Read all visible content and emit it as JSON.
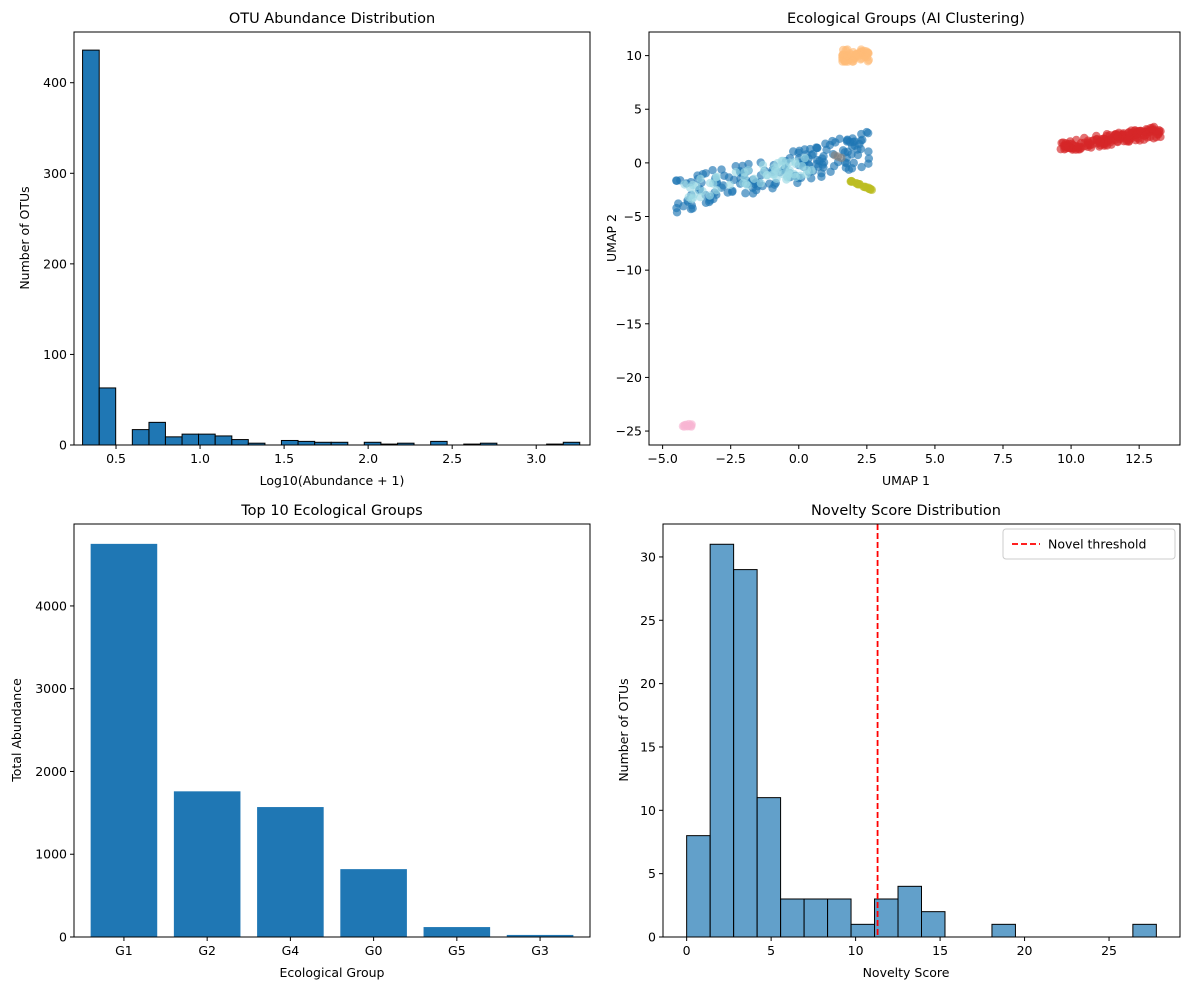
{
  "chart_data": [
    {
      "type": "bar",
      "title": "OTU Abundance Distribution",
      "xlabel": "Log10(Abundance + 1)",
      "ylabel": "Number of OTUs",
      "xlim": [
        0.25,
        3.32
      ],
      "ylim": [
        0,
        456
      ],
      "xticks": [
        0.5,
        1.0,
        1.5,
        2.0,
        2.5,
        3.0
      ],
      "xtick_labels": [
        "0.5",
        "1.0",
        "1.5",
        "2.0",
        "2.5",
        "3.0"
      ],
      "yticks": [
        0,
        100,
        200,
        300,
        400
      ],
      "ytick_labels": [
        "0",
        "100",
        "200",
        "300",
        "400"
      ],
      "bar_color": "#1f77b4",
      "edge_color": "#000000",
      "bin_edges": [
        0.301,
        0.4,
        0.498,
        0.597,
        0.696,
        0.794,
        0.893,
        0.991,
        1.09,
        1.189,
        1.287,
        1.386,
        1.484,
        1.583,
        1.682,
        1.78,
        1.879,
        1.977,
        2.076,
        2.175,
        2.273,
        2.372,
        2.47,
        2.569,
        2.668,
        2.766,
        2.865,
        2.963,
        3.062,
        3.161,
        3.259
      ],
      "counts": [
        436,
        63,
        0,
        17,
        25,
        9,
        12,
        12,
        10,
        6,
        2,
        0,
        5,
        4,
        3,
        3,
        0,
        3,
        1,
        2,
        0,
        4,
        0,
        1,
        2,
        0,
        0,
        0,
        1,
        3
      ]
    },
    {
      "type": "scatter",
      "title": "Ecological Groups (AI Clustering)",
      "xlabel": "UMAP 1",
      "ylabel": "UMAP 2",
      "xlim": [
        -5.5,
        14.0
      ],
      "ylim": [
        -26.3,
        12.2
      ],
      "xticks": [
        -5.0,
        -2.5,
        0.0,
        2.5,
        5.0,
        7.5,
        10.0,
        12.5
      ],
      "xtick_labels": [
        "−5.0",
        "−2.5",
        "0.0",
        "2.5",
        "5.0",
        "7.5",
        "10.0",
        "12.5"
      ],
      "yticks": [
        -25,
        -20,
        -15,
        -10,
        -5,
        0,
        5,
        10
      ],
      "ytick_labels": [
        "−25",
        "−20",
        "−15",
        "−10",
        "−5",
        "0",
        "5",
        "10"
      ],
      "clusters": [
        {
          "color": "#1f77b4",
          "x_range": [
            -4.5,
            2.6
          ],
          "y_range": [
            -3.6,
            2.2
          ],
          "count": 170,
          "shape": "band"
        },
        {
          "color": "#9edae5",
          "x_range": [
            -4.2,
            0.5
          ],
          "y_range": [
            -3.0,
            0.4
          ],
          "count": 60,
          "shape": "band"
        },
        {
          "color": "#d62728",
          "x_range": [
            9.6,
            13.3
          ],
          "y_range": [
            1.3,
            3.2
          ],
          "count": 160,
          "shape": "band"
        },
        {
          "color": "#ffbb78",
          "x_range": [
            1.6,
            2.6
          ],
          "y_range": [
            9.4,
            10.6
          ],
          "count": 60,
          "shape": "blob"
        },
        {
          "color": "#bcbd22",
          "x_range": [
            1.9,
            2.7
          ],
          "y_range": [
            -2.5,
            -1.7
          ],
          "count": 22,
          "shape": "line"
        },
        {
          "color": "#f7b6d2",
          "x_range": [
            -4.3,
            -3.9
          ],
          "y_range": [
            -24.6,
            -24.3
          ],
          "count": 10,
          "shape": "blob"
        },
        {
          "color": "#7f7f7f",
          "x_range": [
            1.3,
            1.6
          ],
          "y_range": [
            0.4,
            0.9
          ],
          "count": 3,
          "shape": "blob"
        }
      ]
    },
    {
      "type": "bar",
      "title": "Top 10 Ecological Groups",
      "xlabel": "Ecological Group",
      "ylabel": "Total Abundance",
      "ylim": [
        0,
        4990
      ],
      "yticks": [
        0,
        1000,
        2000,
        3000,
        4000
      ],
      "ytick_labels": [
        "0",
        "1000",
        "2000",
        "3000",
        "4000"
      ],
      "bar_color": "#1f77b4",
      "categories": [
        "G1",
        "G2",
        "G4",
        "G0",
        "G5",
        "G3"
      ],
      "values": [
        4750,
        1760,
        1570,
        820,
        120,
        25
      ]
    },
    {
      "type": "bar",
      "title": "Novelty Score Distribution",
      "xlabel": "Novelty Score",
      "ylabel": "Number of OTUs",
      "xlim": [
        -1.4,
        29.2
      ],
      "ylim": [
        0,
        32.6
      ],
      "xticks": [
        0,
        5,
        10,
        15,
        20,
        25
      ],
      "xtick_labels": [
        "0",
        "5",
        "10",
        "15",
        "20",
        "25"
      ],
      "yticks": [
        0,
        5,
        10,
        15,
        20,
        25,
        30
      ],
      "ytick_labels": [
        "0",
        "5",
        "10",
        "15",
        "20",
        "25",
        "30"
      ],
      "bar_color": "#1f77b4",
      "bar_opacity": 0.7,
      "edge_color": "#000000",
      "bin_edges": [
        0,
        1.39,
        2.78,
        4.17,
        5.56,
        6.95,
        8.34,
        9.73,
        11.12,
        12.51,
        13.9,
        15.29,
        16.68,
        18.07,
        19.46,
        20.85,
        22.24,
        23.63,
        25.02,
        26.41,
        27.8
      ],
      "counts": [
        8,
        31,
        29,
        11,
        3,
        3,
        3,
        1,
        3,
        4,
        2,
        0,
        0,
        1,
        0,
        0,
        0,
        0,
        0,
        1
      ],
      "threshold": 11.3,
      "threshold_color": "#ff0000",
      "legend": {
        "label": "Novel threshold",
        "position": "top-right"
      }
    }
  ]
}
